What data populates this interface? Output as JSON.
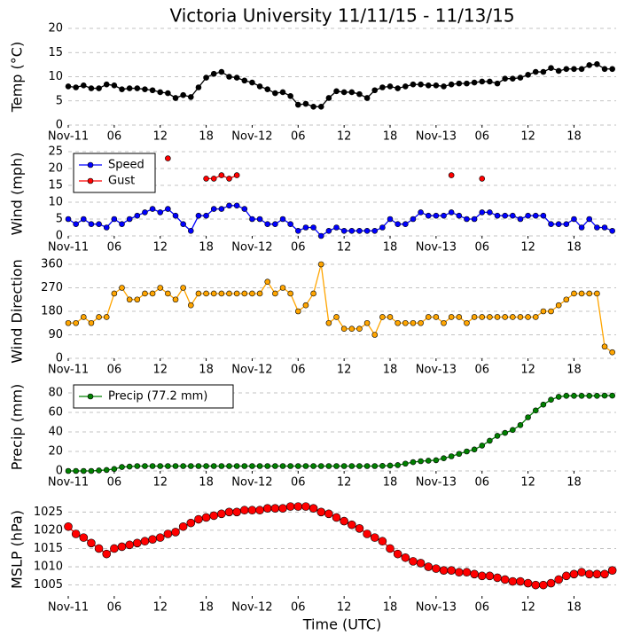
{
  "chart_data": [
    {
      "type": "line",
      "title": "Victoria University 11/11/15 - 11/13/15",
      "y_label": "Temp (°C)",
      "x": [
        0,
        1,
        2,
        3,
        4,
        5,
        6,
        7,
        8,
        9,
        10,
        11,
        12,
        13,
        14,
        15,
        16,
        17,
        18,
        19,
        20,
        21,
        22,
        23,
        24,
        25,
        26,
        27,
        28,
        29,
        30,
        31,
        32,
        33,
        34,
        35,
        36,
        37,
        38,
        39,
        40,
        41,
        42,
        43,
        44,
        45,
        46,
        47,
        48,
        49,
        50,
        51,
        52,
        53,
        54,
        55,
        56,
        57,
        58,
        59,
        60,
        61,
        62,
        63,
        64,
        65,
        66,
        67,
        68,
        69,
        70,
        71
      ],
      "xlim": [
        0,
        71.5
      ],
      "xticks": [
        {
          "value": 0,
          "label": "Nov-11"
        },
        {
          "value": 6,
          "label": "06"
        },
        {
          "value": 12,
          "label": "12"
        },
        {
          "value": 18,
          "label": "18"
        },
        {
          "value": 24,
          "label": "Nov-12"
        },
        {
          "value": 30,
          "label": "06"
        },
        {
          "value": 36,
          "label": "12"
        },
        {
          "value": 42,
          "label": "18"
        },
        {
          "value": 48,
          "label": "Nov-13"
        },
        {
          "value": 54,
          "label": "06"
        },
        {
          "value": 60,
          "label": "12"
        },
        {
          "value": 66,
          "label": "18"
        }
      ],
      "ylim": [
        0,
        20
      ],
      "yticks": [
        0,
        5,
        10,
        15,
        20
      ],
      "grid": true,
      "series": [
        {
          "color": "#000000",
          "values": [
            8,
            7.8,
            8.2,
            7.6,
            7.6,
            8.4,
            8.2,
            7.4,
            7.6,
            7.6,
            7.4,
            7.2,
            6.8,
            6.6,
            5.6,
            6.2,
            5.8,
            7.8,
            9.8,
            10.6,
            11,
            10,
            9.8,
            9.2,
            8.8,
            8,
            7.4,
            6.6,
            6.8,
            6,
            4.2,
            4.4,
            3.8,
            3.8,
            5.6,
            7,
            6.8,
            6.8,
            6.4,
            5.6,
            7.2,
            7.8,
            8,
            7.6,
            8,
            8.4,
            8.4,
            8.2,
            8.2,
            8,
            8.4,
            8.6,
            8.6,
            8.8,
            9,
            9,
            8.6,
            9.6,
            9.6,
            9.8,
            10.4,
            11,
            11,
            11.8,
            11.2,
            11.6,
            11.6,
            11.6,
            12.4,
            12.6,
            11.6,
            11.6
          ]
        }
      ]
    },
    {
      "type": "line",
      "y_label": "Wind (mph)",
      "x": [
        0,
        1,
        2,
        3,
        4,
        5,
        6,
        7,
        8,
        9,
        10,
        11,
        12,
        13,
        14,
        15,
        16,
        17,
        18,
        19,
        20,
        21,
        22,
        23,
        24,
        25,
        26,
        27,
        28,
        29,
        30,
        31,
        32,
        33,
        34,
        35,
        36,
        37,
        38,
        39,
        40,
        41,
        42,
        43,
        44,
        45,
        46,
        47,
        48,
        49,
        50,
        51,
        52,
        53,
        54,
        55,
        56,
        57,
        58,
        59,
        60,
        61,
        62,
        63,
        64,
        65,
        66,
        67,
        68,
        69,
        70,
        71
      ],
      "xlim": [
        0,
        71.5
      ],
      "xticks": [
        {
          "value": 0,
          "label": "Nov-11"
        },
        {
          "value": 6,
          "label": "06"
        },
        {
          "value": 12,
          "label": "12"
        },
        {
          "value": 18,
          "label": "18"
        },
        {
          "value": 24,
          "label": "Nov-12"
        },
        {
          "value": 30,
          "label": "06"
        },
        {
          "value": 36,
          "label": "12"
        },
        {
          "value": 42,
          "label": "18"
        },
        {
          "value": 48,
          "label": "Nov-13"
        },
        {
          "value": 54,
          "label": "06"
        },
        {
          "value": 60,
          "label": "12"
        },
        {
          "value": 66,
          "label": "18"
        }
      ],
      "ylim": [
        0,
        25
      ],
      "yticks": [
        0,
        5,
        10,
        15,
        20,
        25
      ],
      "grid": true,
      "legend": "upper left",
      "series": [
        {
          "name": "Speed",
          "color": "#0000ff",
          "values": [
            5,
            3.5,
            5,
            3.5,
            3.5,
            2.5,
            5,
            3.5,
            5,
            6,
            7,
            8,
            7,
            8,
            6,
            3.5,
            1.5,
            6,
            6,
            8,
            8,
            9,
            9,
            8,
            5,
            5,
            3.5,
            3.5,
            5,
            3.5,
            1.5,
            2.5,
            2.5,
            0,
            1.5,
            2.5,
            1.5,
            1.5,
            1.5,
            1.5,
            1.5,
            2.5,
            5,
            3.5,
            3.5,
            5,
            7,
            6,
            6,
            6,
            7,
            6,
            5,
            5,
            7,
            7,
            6,
            6,
            6,
            5,
            6,
            6,
            6,
            3.5,
            3.5,
            3.5,
            5,
            2.5,
            5,
            2.5,
            2.5,
            1.5
          ]
        },
        {
          "name": "Gust",
          "color": "#ff0000",
          "values": [
            null,
            null,
            null,
            null,
            null,
            null,
            null,
            null,
            null,
            null,
            null,
            18,
            null,
            23,
            null,
            null,
            null,
            null,
            17,
            17,
            18,
            17,
            18,
            null,
            null,
            null,
            null,
            null,
            null,
            null,
            null,
            null,
            null,
            null,
            null,
            null,
            null,
            null,
            null,
            null,
            null,
            null,
            null,
            null,
            null,
            null,
            null,
            null,
            null,
            null,
            18,
            null,
            null,
            null,
            17,
            null,
            null,
            null,
            null,
            null,
            null,
            null,
            null,
            null,
            null,
            null,
            null,
            null,
            null,
            null,
            null,
            null
          ]
        }
      ]
    },
    {
      "type": "line",
      "y_label": "Wind Direction",
      "x": [
        0,
        1,
        2,
        3,
        4,
        5,
        6,
        7,
        8,
        9,
        10,
        11,
        12,
        13,
        14,
        15,
        16,
        17,
        18,
        19,
        20,
        21,
        22,
        23,
        24,
        25,
        26,
        27,
        28,
        29,
        30,
        31,
        32,
        33,
        34,
        35,
        36,
        37,
        38,
        39,
        40,
        41,
        42,
        43,
        44,
        45,
        46,
        47,
        48,
        49,
        50,
        51,
        52,
        53,
        54,
        55,
        56,
        57,
        58,
        59,
        60,
        61,
        62,
        63,
        64,
        65,
        66,
        67,
        68,
        69,
        70,
        71
      ],
      "xlim": [
        0,
        71.5
      ],
      "xticks": [
        {
          "value": 0,
          "label": "Nov-11"
        },
        {
          "value": 6,
          "label": "06"
        },
        {
          "value": 12,
          "label": "12"
        },
        {
          "value": 18,
          "label": "18"
        },
        {
          "value": 24,
          "label": "Nov-12"
        },
        {
          "value": 30,
          "label": "06"
        },
        {
          "value": 36,
          "label": "12"
        },
        {
          "value": 42,
          "label": "18"
        },
        {
          "value": 48,
          "label": "Nov-13"
        },
        {
          "value": 54,
          "label": "06"
        },
        {
          "value": 60,
          "label": "12"
        },
        {
          "value": 66,
          "label": "18"
        }
      ],
      "ylim": [
        0,
        360
      ],
      "yticks": [
        0,
        90,
        180,
        270,
        360
      ],
      "grid": true,
      "series": [
        {
          "color": "#ffa500",
          "values": [
            135,
            135,
            158,
            135,
            158,
            158,
            248,
            270,
            225,
            225,
            248,
            248,
            270,
            248,
            225,
            270,
            203,
            248,
            248,
            248,
            248,
            248,
            248,
            248,
            248,
            248,
            293,
            248,
            270,
            248,
            180,
            203,
            248,
            360,
            135,
            158,
            113,
            113,
            113,
            135,
            90,
            158,
            158,
            135,
            135,
            135,
            135,
            158,
            158,
            135,
            158,
            158,
            135,
            158,
            158,
            158,
            158,
            158,
            158,
            158,
            158,
            158,
            180,
            180,
            203,
            225,
            248,
            248,
            248,
            248,
            45,
            23
          ]
        }
      ]
    },
    {
      "type": "line",
      "y_label": "Precip (mm)",
      "x": [
        0,
        1,
        2,
        3,
        4,
        5,
        6,
        7,
        8,
        9,
        10,
        11,
        12,
        13,
        14,
        15,
        16,
        17,
        18,
        19,
        20,
        21,
        22,
        23,
        24,
        25,
        26,
        27,
        28,
        29,
        30,
        31,
        32,
        33,
        34,
        35,
        36,
        37,
        38,
        39,
        40,
        41,
        42,
        43,
        44,
        45,
        46,
        47,
        48,
        49,
        50,
        51,
        52,
        53,
        54,
        55,
        56,
        57,
        58,
        59,
        60,
        61,
        62,
        63,
        64,
        65,
        66,
        67,
        68,
        69,
        70,
        71
      ],
      "xlim": [
        0,
        71.5
      ],
      "xticks": [
        {
          "value": 0,
          "label": "Nov-11"
        },
        {
          "value": 6,
          "label": "06"
        },
        {
          "value": 12,
          "label": "12"
        },
        {
          "value": 18,
          "label": "18"
        },
        {
          "value": 24,
          "label": "Nov-12"
        },
        {
          "value": 30,
          "label": "06"
        },
        {
          "value": 36,
          "label": "12"
        },
        {
          "value": 42,
          "label": "18"
        },
        {
          "value": 48,
          "label": "Nov-13"
        },
        {
          "value": 54,
          "label": "06"
        },
        {
          "value": 60,
          "label": "12"
        },
        {
          "value": 66,
          "label": "18"
        }
      ],
      "ylim": [
        0,
        90
      ],
      "yticks": [
        0,
        20,
        40,
        60,
        80
      ],
      "grid": true,
      "legend": "upper left",
      "series": [
        {
          "name": "Precip (77.2 mm)",
          "color": "#008000",
          "values": [
            0,
            0,
            0,
            0,
            0.5,
            1,
            2,
            4,
            4.5,
            5,
            5,
            5,
            5,
            5,
            5,
            5,
            5,
            5,
            5,
            5,
            5,
            5,
            5,
            5,
            5,
            5,
            5,
            5,
            5,
            5,
            5,
            5,
            5,
            5,
            5,
            5,
            5,
            5,
            5,
            5,
            5,
            5.2,
            5.5,
            6,
            7.5,
            9,
            10,
            10.5,
            11,
            13,
            15,
            17.5,
            20,
            22,
            26,
            31,
            36,
            39,
            42,
            47,
            55,
            62,
            68,
            73,
            76,
            77,
            77,
            77,
            77,
            77,
            77.2,
            77.2
          ]
        }
      ]
    },
    {
      "type": "line",
      "y_label": "MSLP (hPa)",
      "x_label": "Time (UTC)",
      "x": [
        0,
        1,
        2,
        3,
        4,
        5,
        6,
        7,
        8,
        9,
        10,
        11,
        12,
        13,
        14,
        15,
        16,
        17,
        18,
        19,
        20,
        21,
        22,
        23,
        24,
        25,
        26,
        27,
        28,
        29,
        30,
        31,
        32,
        33,
        34,
        35,
        36,
        37,
        38,
        39,
        40,
        41,
        42,
        43,
        44,
        45,
        46,
        47,
        48,
        49,
        50,
        51,
        52,
        53,
        54,
        55,
        56,
        57,
        58,
        59,
        60,
        61,
        62,
        63,
        64,
        65,
        66,
        67,
        68,
        69,
        70,
        71
      ],
      "xlim": [
        0,
        71.5
      ],
      "xticks": [
        {
          "value": 0,
          "label": "Nov-11"
        },
        {
          "value": 6,
          "label": "06"
        },
        {
          "value": 12,
          "label": "12"
        },
        {
          "value": 18,
          "label": "18"
        },
        {
          "value": 24,
          "label": "Nov-12"
        },
        {
          "value": 30,
          "label": "06"
        },
        {
          "value": 36,
          "label": "12"
        },
        {
          "value": 42,
          "label": "18"
        },
        {
          "value": 48,
          "label": "Nov-13"
        },
        {
          "value": 54,
          "label": "06"
        },
        {
          "value": 60,
          "label": "12"
        },
        {
          "value": 66,
          "label": "18"
        }
      ],
      "ylim": [
        1002,
        1027.5
      ],
      "yticks": [
        1005,
        1010,
        1015,
        1020,
        1025
      ],
      "grid": true,
      "series": [
        {
          "color": "#ff0000",
          "values": [
            1021,
            1019,
            1018,
            1016.5,
            1015,
            1013.5,
            1015,
            1015.5,
            1016,
            1016.5,
            1017,
            1017.5,
            1018,
            1019,
            1019.5,
            1021,
            1022,
            1023,
            1023.5,
            1024,
            1024.5,
            1025,
            1025,
            1025.5,
            1025.5,
            1025.5,
            1026,
            1026,
            1026,
            1026.5,
            1026.5,
            1026.5,
            1026,
            1025,
            1024.5,
            1023.5,
            1022.5,
            1021.5,
            1020.5,
            1019,
            1018,
            1017,
            1015,
            1013.5,
            1012.5,
            1011.5,
            1011,
            1010,
            1009.5,
            1009,
            1009,
            1008.5,
            1008.5,
            1008,
            1007.5,
            1007.5,
            1007,
            1006.5,
            1006,
            1006,
            1005.5,
            1005,
            1005,
            1005.5,
            1006.5,
            1007.5,
            1008,
            1008.5,
            1008,
            1008,
            1008,
            1009
          ]
        }
      ]
    }
  ]
}
